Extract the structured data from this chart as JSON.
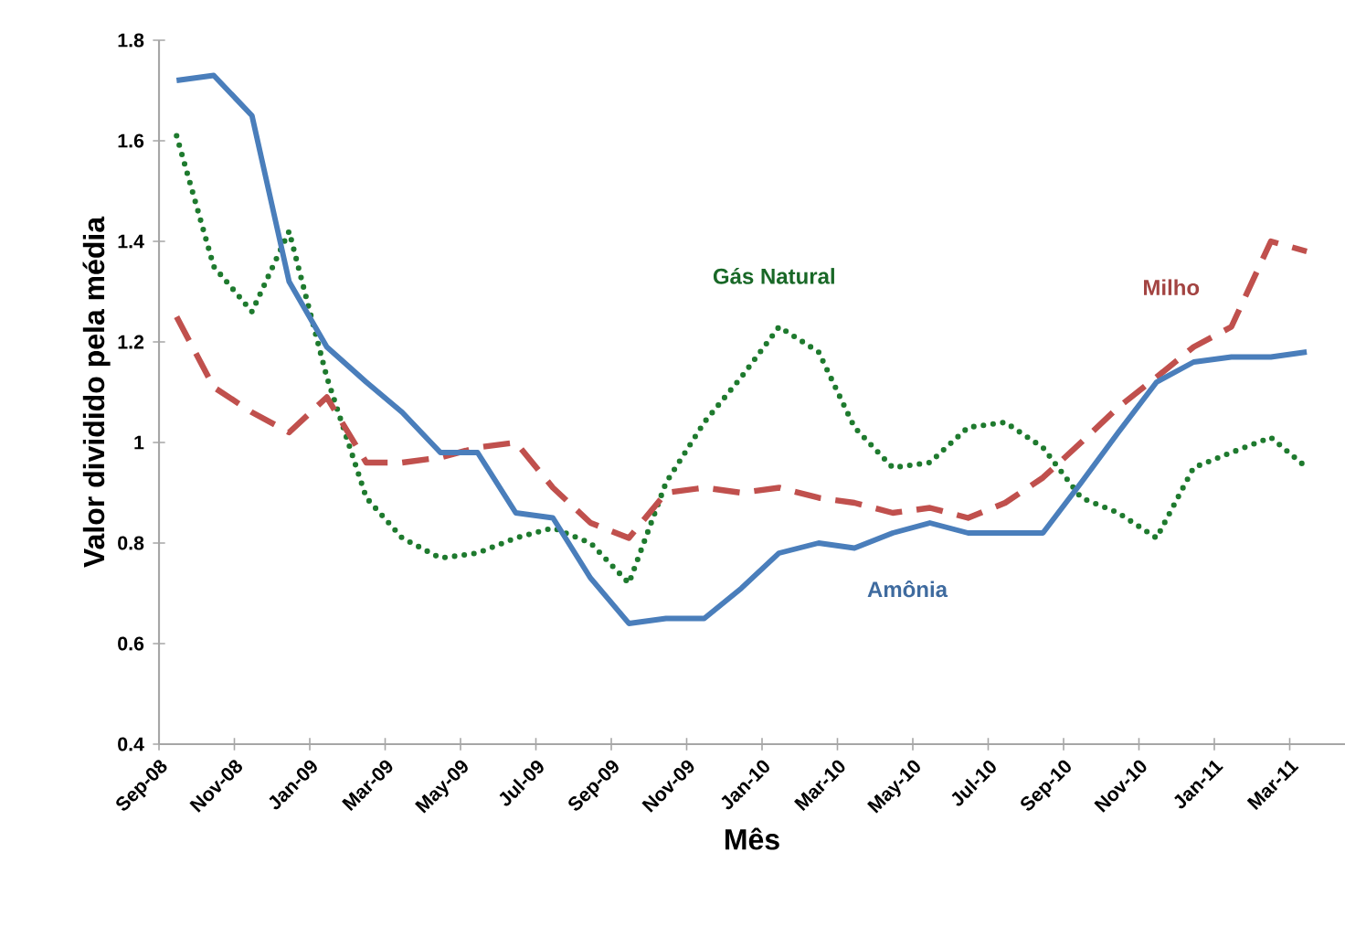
{
  "chart_data": {
    "type": "line",
    "xlabel": "Mês",
    "ylabel": "Valor dividido pela média",
    "x": [
      "2008-09-15",
      "2008-10-15",
      "2008-11-15",
      "2008-12-15",
      "2009-01-15",
      "2009-02-15",
      "2009-03-15",
      "2009-04-15",
      "2009-05-15",
      "2009-06-15",
      "2009-07-15",
      "2009-08-15",
      "2009-09-15",
      "2009-10-15",
      "2009-11-15",
      "2009-12-15",
      "2010-01-15",
      "2010-02-15",
      "2010-03-15",
      "2010-04-15",
      "2010-05-15",
      "2010-06-15",
      "2010-07-15",
      "2010-08-15",
      "2010-09-15",
      "2010-10-15",
      "2010-11-15",
      "2010-12-15",
      "2011-01-15",
      "2011-02-15",
      "2011-03-15"
    ],
    "series": [
      {
        "name": "Gás Natural",
        "color": "#1e7a2e",
        "line_style": "dotted",
        "values": [
          1.61,
          1.35,
          1.26,
          1.42,
          1.13,
          0.89,
          0.81,
          0.77,
          0.78,
          0.81,
          0.83,
          0.8,
          0.72,
          0.92,
          1.04,
          1.13,
          1.23,
          1.18,
          1.03,
          0.95,
          0.96,
          1.03,
          1.04,
          0.99,
          0.89,
          0.86,
          0.81,
          0.95,
          0.98,
          1.01,
          0.95
        ]
      },
      {
        "name": "Milho",
        "color": "#c0504d",
        "line_style": "dashed",
        "values": [
          1.25,
          1.11,
          1.06,
          1.02,
          1.09,
          0.96,
          0.96,
          0.97,
          0.99,
          1.0,
          0.91,
          0.84,
          0.81,
          0.9,
          0.91,
          0.9,
          0.91,
          0.89,
          0.88,
          0.86,
          0.87,
          0.85,
          0.88,
          0.93,
          1.0,
          1.07,
          1.13,
          1.19,
          1.23,
          1.4,
          1.38
        ]
      },
      {
        "name": "Amônia",
        "color": "#4a7ebb",
        "line_style": "solid",
        "values": [
          1.72,
          1.73,
          1.65,
          1.32,
          1.19,
          1.12,
          1.06,
          0.98,
          0.98,
          0.86,
          0.85,
          0.73,
          0.64,
          0.65,
          0.65,
          0.71,
          0.78,
          0.8,
          0.79,
          0.82,
          0.84,
          0.82,
          0.82,
          0.82,
          0.92,
          1.02,
          1.12,
          1.16,
          1.17,
          1.17,
          1.18
        ]
      }
    ],
    "xlim": [
      "2008-09-01",
      "2011-04-15"
    ],
    "xticks": [
      {
        "value": "2008-09-01",
        "label": "Sep-08"
      },
      {
        "value": "2008-11-01",
        "label": "Nov-08"
      },
      {
        "value": "2009-01-01",
        "label": "Jan-09"
      },
      {
        "value": "2009-03-01",
        "label": "Mar-09"
      },
      {
        "value": "2009-05-01",
        "label": "May-09"
      },
      {
        "value": "2009-07-01",
        "label": "Jul-09"
      },
      {
        "value": "2009-09-01",
        "label": "Sep-09"
      },
      {
        "value": "2009-11-01",
        "label": "Nov-09"
      },
      {
        "value": "2010-01-01",
        "label": "Jan-10"
      },
      {
        "value": "2010-03-01",
        "label": "Mar-10"
      },
      {
        "value": "2010-05-01",
        "label": "May-10"
      },
      {
        "value": "2010-07-01",
        "label": "Jul-10"
      },
      {
        "value": "2010-09-01",
        "label": "Sep-10"
      },
      {
        "value": "2010-11-01",
        "label": "Nov-10"
      },
      {
        "value": "2011-01-01",
        "label": "Jan-11"
      },
      {
        "value": "2011-03-01",
        "label": "Mar-11"
      }
    ],
    "ylim": [
      0.4,
      1.8
    ],
    "yticks": [
      0.4,
      0.6,
      0.8,
      {
        "value": 1,
        "label": "1"
      },
      1.2,
      1.4,
      1.6,
      1.8
    ],
    "grid": false,
    "legend": false,
    "marker": "none"
  }
}
